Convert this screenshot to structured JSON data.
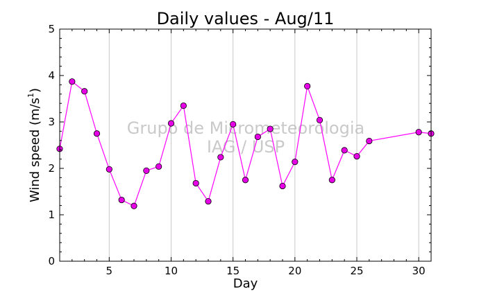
{
  "chart_data": {
    "type": "line",
    "title": "Daily values - Aug/11",
    "xlabel": "Day",
    "ylabel_main": "Wind speed (m/s",
    "ylabel_superscript": "1",
    "ylabel_end": ")",
    "xlim": [
      1,
      31
    ],
    "ylim": [
      0,
      5
    ],
    "x_ticks": [
      5,
      10,
      15,
      20,
      25,
      30
    ],
    "y_ticks": [
      0,
      1,
      2,
      3,
      4,
      5
    ],
    "grid": "x-major",
    "series": [
      {
        "x": [
          1,
          2,
          3,
          4,
          5,
          6,
          7,
          8,
          9,
          10,
          11,
          12,
          13,
          14,
          15,
          16,
          17,
          18,
          19,
          20,
          21,
          22,
          23,
          24,
          25,
          26,
          30,
          31
        ],
        "values": [
          2.42,
          3.87,
          3.66,
          2.75,
          1.98,
          1.32,
          1.19,
          1.95,
          2.04,
          2.97,
          3.35,
          1.68,
          1.29,
          2.24,
          2.95,
          1.75,
          2.68,
          2.85,
          1.62,
          2.14,
          3.77,
          3.04,
          1.75,
          2.39,
          2.26,
          2.59,
          2.78,
          2.75
        ],
        "color": "#ff00ff",
        "marker_color": "#e600e6"
      }
    ]
  },
  "watermark": {
    "line1": "Grupo de Micrometeorologia",
    "line2": "IAG / USP"
  }
}
